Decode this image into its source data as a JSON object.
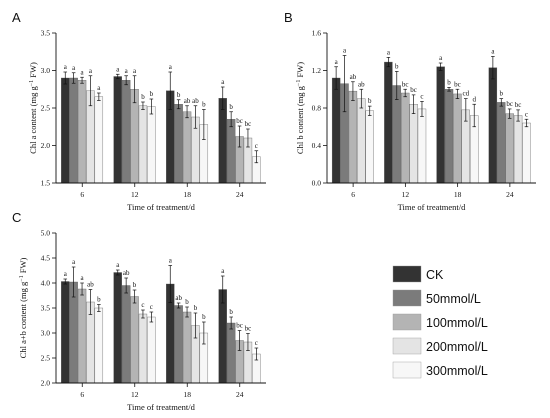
{
  "legend": {
    "items": [
      {
        "label": "CK",
        "color": "#333333"
      },
      {
        "label": "50mmol/L",
        "color": "#7b7b7b"
      },
      {
        "label": "100mmol/L",
        "color": "#b4b4b4"
      },
      {
        "label": "200mmol/L",
        "color": "#e4e4e4"
      },
      {
        "label": "300mmol/L",
        "color": "#f7f7f7"
      }
    ]
  },
  "chart_data": [
    {
      "type": "bar",
      "panel_label": "A",
      "xlabel": "Time of treatment/d",
      "ylabel_main": "Chl a content (mg g",
      "ylabel_sup": "−1",
      "ylabel_tail": " FW)",
      "categories": [
        "6",
        "12",
        "18",
        "24"
      ],
      "ylim": [
        1.5,
        3.5
      ],
      "yticks": [
        "1.5",
        "2.0",
        "2.5",
        "3.0",
        "3.5"
      ],
      "series": [
        {
          "name": "CK",
          "values": [
            2.9,
            2.92,
            2.73,
            2.63
          ],
          "errors": [
            0.08,
            0.03,
            0.25,
            0.15
          ],
          "letters": [
            "a",
            "a",
            "a",
            "a"
          ]
        },
        {
          "name": "50mmol/L",
          "values": [
            2.9,
            2.87,
            2.55,
            2.35
          ],
          "errors": [
            0.07,
            0.06,
            0.06,
            0.1
          ],
          "letters": [
            "a",
            "a",
            "b",
            "b"
          ]
        },
        {
          "name": "100mmol/L",
          "values": [
            2.87,
            2.75,
            2.45,
            2.12
          ],
          "errors": [
            0.04,
            0.18,
            0.08,
            0.14
          ],
          "letters": [
            "a",
            "a",
            "ab",
            "bc"
          ]
        },
        {
          "name": "200mmol/L",
          "values": [
            2.73,
            2.53,
            2.38,
            2.1
          ],
          "errors": [
            0.2,
            0.05,
            0.15,
            0.12
          ],
          "letters": [
            "a",
            "b",
            "ab",
            "bc"
          ]
        },
        {
          "name": "300mmol/L",
          "values": [
            2.65,
            2.52,
            2.28,
            1.85
          ],
          "errors": [
            0.05,
            0.1,
            0.2,
            0.08
          ],
          "letters": [
            "a",
            "b",
            "b",
            "c"
          ]
        }
      ]
    },
    {
      "type": "bar",
      "panel_label": "B",
      "xlabel": "Time of treatment/d",
      "ylabel_main": "Chl b content (mg g",
      "ylabel_sup": "−1",
      "ylabel_tail": " FW)",
      "categories": [
        "6",
        "12",
        "18",
        "24"
      ],
      "ylim": [
        0.0,
        1.6
      ],
      "yticks": [
        "0.0",
        "0.4",
        "0.8",
        "1.2",
        "1.6"
      ],
      "series": [
        {
          "name": "CK",
          "values": [
            1.12,
            1.29,
            1.24,
            1.23
          ],
          "errors": [
            0.12,
            0.05,
            0.04,
            0.12
          ],
          "letters": [
            "a",
            "a",
            "a",
            "a"
          ]
        },
        {
          "name": "50mmol/L",
          "values": [
            1.06,
            1.04,
            1.0,
            0.86
          ],
          "errors": [
            0.3,
            0.15,
            0.02,
            0.04
          ],
          "letters": [
            "a",
            "b",
            "b",
            "b"
          ]
        },
        {
          "name": "100mmol/L",
          "values": [
            0.98,
            0.96,
            0.95,
            0.74
          ],
          "errors": [
            0.1,
            0.04,
            0.05,
            0.05
          ],
          "letters": [
            "ab",
            "bc",
            "bc",
            "bc"
          ]
        },
        {
          "name": "200mmol/L",
          "values": [
            0.9,
            0.84,
            0.78,
            0.72
          ],
          "errors": [
            0.1,
            0.1,
            0.12,
            0.06
          ],
          "letters": [
            "ab",
            "bc",
            "cd",
            "bc"
          ]
        },
        {
          "name": "300mmol/L",
          "values": [
            0.77,
            0.79,
            0.72,
            0.64
          ],
          "errors": [
            0.05,
            0.08,
            0.12,
            0.04
          ],
          "letters": [
            "b",
            "c",
            "d",
            "c"
          ]
        }
      ]
    },
    {
      "type": "bar",
      "panel_label": "C",
      "xlabel": "Time of treatment/d",
      "ylabel_main": "Chl a+b content (mg g",
      "ylabel_sup": "−1",
      "ylabel_tail": " FW)",
      "categories": [
        "6",
        "12",
        "18",
        "24"
      ],
      "ylim": [
        2.0,
        5.0
      ],
      "yticks": [
        "2.0",
        "2.5",
        "3.0",
        "3.5",
        "4.0",
        "4.5",
        "5.0"
      ],
      "series": [
        {
          "name": "CK",
          "values": [
            4.03,
            4.21,
            3.98,
            3.87
          ],
          "errors": [
            0.05,
            0.05,
            0.37,
            0.27
          ],
          "letters": [
            "a",
            "a",
            "a",
            "a"
          ]
        },
        {
          "name": "50mmol/L",
          "values": [
            4.02,
            3.95,
            3.55,
            3.2
          ],
          "errors": [
            0.3,
            0.15,
            0.05,
            0.12
          ],
          "letters": [
            "a",
            "ab",
            "ab",
            "b"
          ]
        },
        {
          "name": "100mmol/L",
          "values": [
            3.88,
            3.73,
            3.42,
            2.85
          ],
          "errors": [
            0.12,
            0.13,
            0.1,
            0.2
          ],
          "letters": [
            "a",
            "b",
            "b",
            "bc"
          ]
        },
        {
          "name": "200mmol/L",
          "values": [
            3.62,
            3.38,
            3.15,
            2.82
          ],
          "errors": [
            0.25,
            0.08,
            0.25,
            0.17
          ],
          "letters": [
            "ab",
            "c",
            "b",
            "bc"
          ]
        },
        {
          "name": "300mmol/L",
          "values": [
            3.5,
            3.32,
            3.0,
            2.58
          ],
          "errors": [
            0.07,
            0.1,
            0.22,
            0.12
          ],
          "letters": [
            "b",
            "c",
            "b",
            "c"
          ]
        }
      ]
    }
  ]
}
